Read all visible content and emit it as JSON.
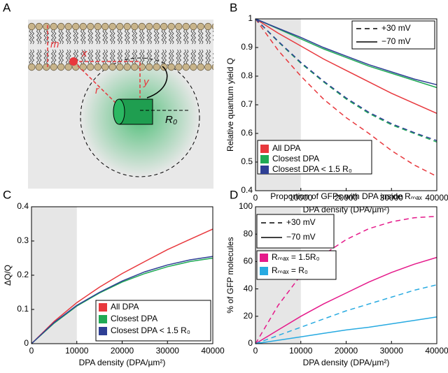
{
  "panels": [
    "A",
    "B",
    "C",
    "D"
  ],
  "diagram": {
    "labels": [
      "m",
      "x",
      "y",
      "r",
      "R₀"
    ]
  },
  "chart_data": [
    {
      "type": "line",
      "xlabel": "DPA density (DPA/µm²)",
      "ylabel": "Relative quantum yield Q",
      "x": [
        0,
        5000,
        10000,
        15000,
        20000,
        25000,
        30000,
        35000,
        40000
      ],
      "xlim": [
        0,
        40000
      ],
      "xticks": [
        0,
        10000,
        20000,
        30000,
        40000
      ],
      "ylim": [
        0.4,
        1
      ],
      "yticks": [
        0.4,
        0.5,
        0.6,
        0.7,
        0.8,
        0.9,
        1
      ],
      "shade": [
        0,
        10000
      ],
      "legend_styles": [
        {
          "name": "+30 mV",
          "dash": true
        },
        {
          "name": "−70 mV",
          "dash": false
        }
      ],
      "legend_colors": [
        {
          "name": "All DPA",
          "color": "#e8383d"
        },
        {
          "name": "Closest DPA",
          "color": "#1faa55"
        },
        {
          "name": "Closest DPA < 1.5 R₀",
          "color": "#2e3f95"
        }
      ],
      "series": [
        {
          "color": "#e8383d",
          "dash": false,
          "values": [
            1,
            0.95,
            0.905,
            0.86,
            0.82,
            0.78,
            0.74,
            0.705,
            0.67
          ]
        },
        {
          "color": "#1faa55",
          "dash": false,
          "values": [
            1,
            0.965,
            0.93,
            0.895,
            0.865,
            0.835,
            0.81,
            0.785,
            0.76
          ]
        },
        {
          "color": "#2e3f95",
          "dash": false,
          "values": [
            1,
            0.967,
            0.935,
            0.9,
            0.87,
            0.84,
            0.815,
            0.79,
            0.77
          ]
        },
        {
          "color": "#e8383d",
          "dash": true,
          "values": [
            1,
            0.89,
            0.8,
            0.72,
            0.655,
            0.6,
            0.54,
            0.49,
            0.45
          ]
        },
        {
          "color": "#1faa55",
          "dash": true,
          "values": [
            1,
            0.92,
            0.845,
            0.78,
            0.72,
            0.67,
            0.63,
            0.6,
            0.57
          ]
        },
        {
          "color": "#2e3f95",
          "dash": true,
          "values": [
            1,
            0.922,
            0.848,
            0.783,
            0.724,
            0.674,
            0.634,
            0.603,
            0.575
          ]
        }
      ]
    },
    {
      "type": "line",
      "xlabel": "DPA density (DPA/µm²)",
      "ylabel": "ΔQ/Q",
      "x": [
        0,
        5000,
        10000,
        15000,
        20000,
        25000,
        30000,
        35000,
        40000
      ],
      "xlim": [
        0,
        40000
      ],
      "xticks": [
        0,
        10000,
        20000,
        30000,
        40000
      ],
      "ylim": [
        0,
        0.4
      ],
      "yticks": [
        0,
        0.1,
        0.2,
        0.3,
        0.4
      ],
      "shade": [
        0,
        10000
      ],
      "legend_colors": [
        {
          "name": "All DPA",
          "color": "#e8383d"
        },
        {
          "name": "Closest DPA",
          "color": "#1faa55"
        },
        {
          "name": "Closest DPA < 1.5 R₀",
          "color": "#2e3f95"
        }
      ],
      "series": [
        {
          "color": "#e8383d",
          "dash": false,
          "values": [
            0,
            0.065,
            0.12,
            0.165,
            0.205,
            0.24,
            0.275,
            0.305,
            0.335
          ]
        },
        {
          "color": "#1faa55",
          "dash": false,
          "values": [
            0,
            0.06,
            0.11,
            0.148,
            0.18,
            0.205,
            0.225,
            0.24,
            0.25
          ]
        },
        {
          "color": "#2e3f95",
          "dash": false,
          "values": [
            0,
            0.062,
            0.112,
            0.15,
            0.183,
            0.21,
            0.23,
            0.245,
            0.255
          ]
        }
      ]
    },
    {
      "type": "line",
      "title": "Proportion of GFPs with DPA inside Rₘₐₓ",
      "xlabel": "DPA density (DPA/µm²)",
      "ylabel": "% of GFP molecules",
      "x": [
        0,
        5000,
        10000,
        15000,
        20000,
        25000,
        30000,
        35000,
        40000
      ],
      "xlim": [
        0,
        40000
      ],
      "xticks": [
        0,
        10000,
        20000,
        30000,
        40000
      ],
      "ylim": [
        0,
        100
      ],
      "yticks": [
        0,
        20,
        40,
        60,
        80,
        100
      ],
      "shade": [
        0,
        10000
      ],
      "legend_styles": [
        {
          "name": "+30 mV",
          "dash": true
        },
        {
          "name": "−70 mV",
          "dash": false
        }
      ],
      "legend_colors": [
        {
          "name": "Rₘₐₓ = 1.5R₀",
          "color": "#e5198a"
        },
        {
          "name": "Rₘₐₓ = R₀",
          "color": "#27aae1"
        }
      ],
      "series": [
        {
          "color": "#e5198a",
          "dash": true,
          "values": [
            0,
            28,
            50,
            65,
            76,
            84,
            89,
            92,
            93
          ]
        },
        {
          "color": "#e5198a",
          "dash": false,
          "values": [
            0,
            10,
            20,
            29,
            37,
            45,
            52,
            58,
            63
          ]
        },
        {
          "color": "#27aae1",
          "dash": true,
          "values": [
            0,
            6,
            12,
            18,
            24,
            29,
            34,
            39,
            43
          ]
        },
        {
          "color": "#27aae1",
          "dash": false,
          "values": [
            0,
            2.5,
            5,
            7.5,
            10,
            12,
            14.5,
            17,
            19.5
          ]
        }
      ]
    }
  ]
}
